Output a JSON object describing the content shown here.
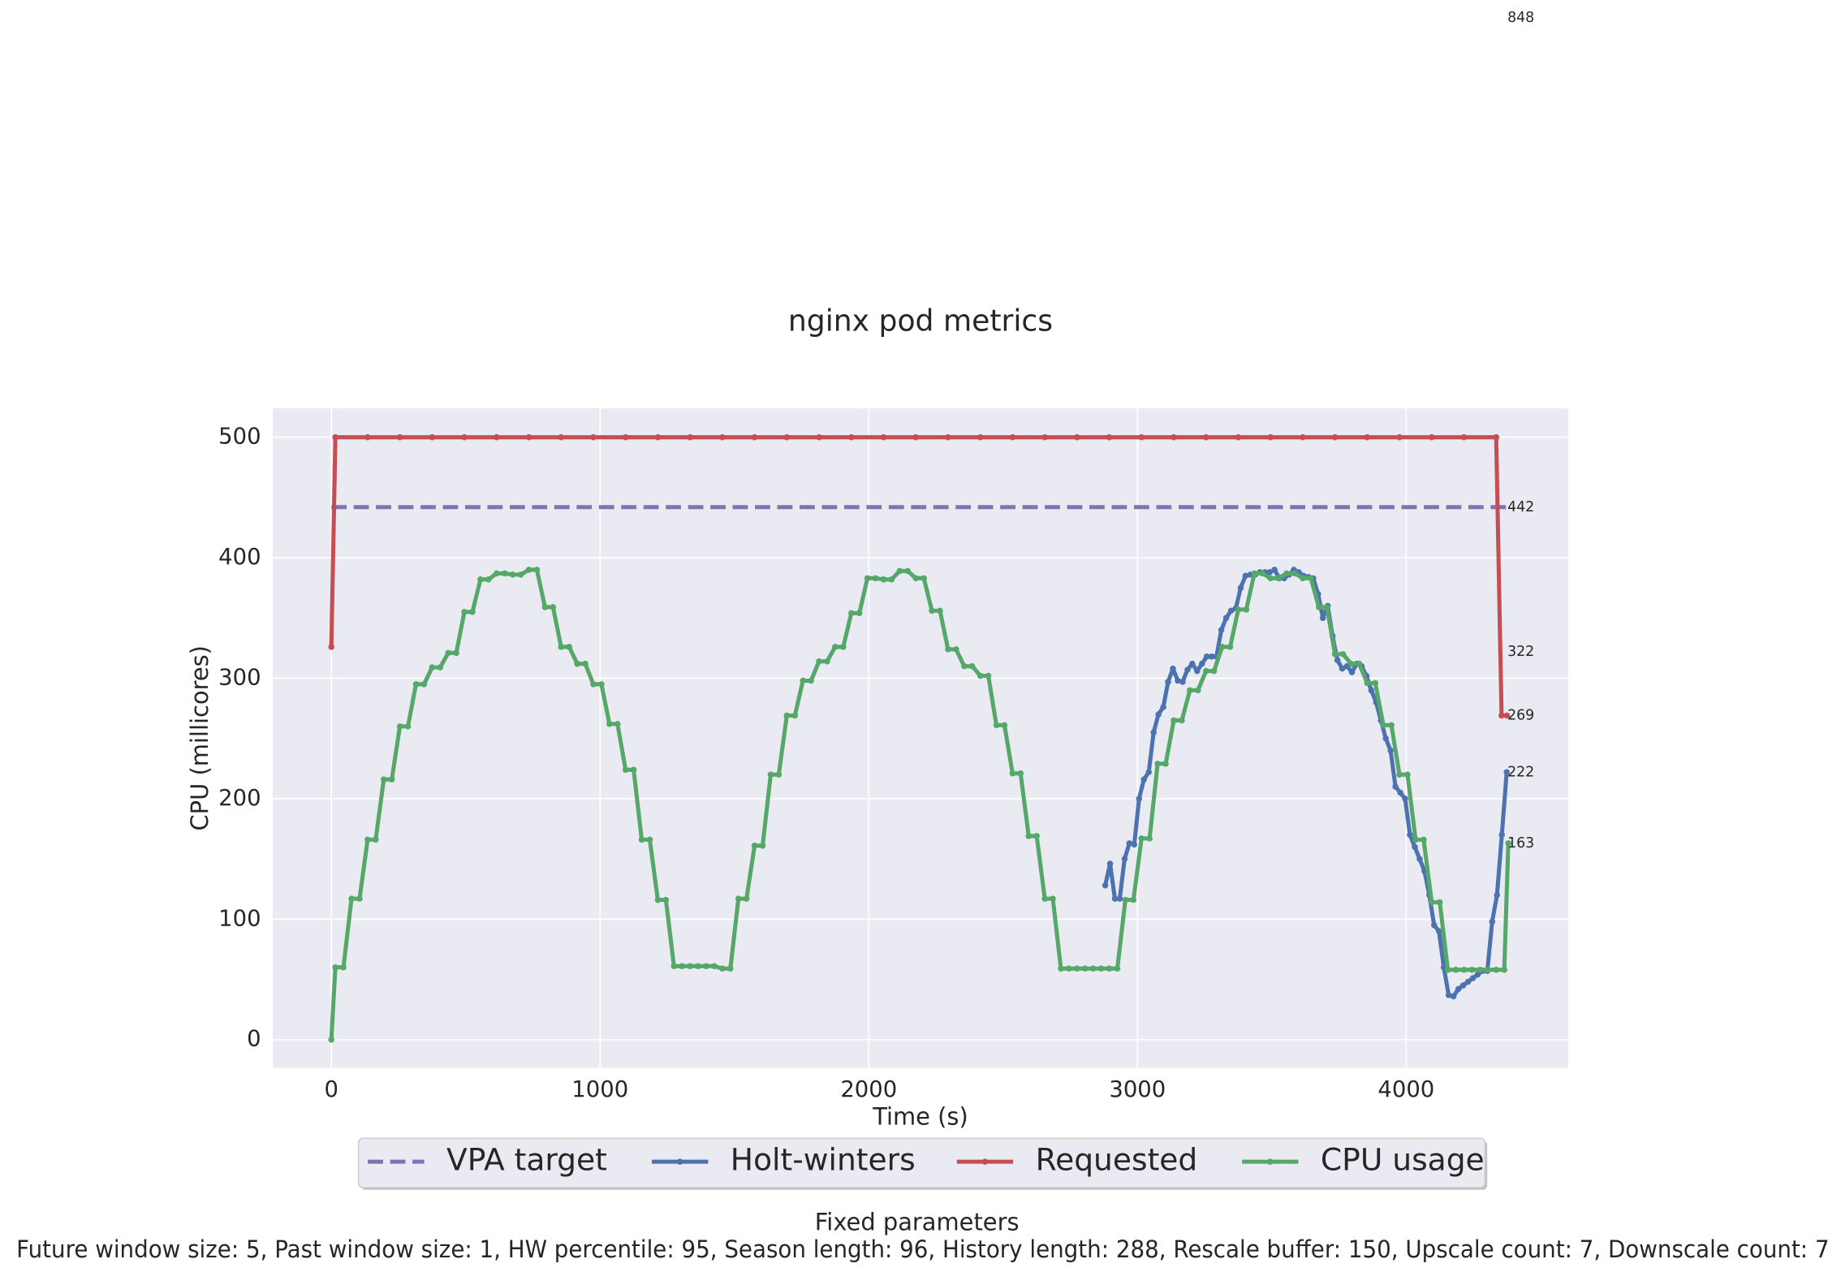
{
  "chart_data": {
    "type": "line",
    "title": "nginx pod metrics",
    "x_label": "Time (s)",
    "y_label": "CPU (millicores)",
    "xlim": [
      -218,
      4603
    ],
    "ylim": [
      -23.4,
      524
    ],
    "xticks": [
      0,
      1000,
      2000,
      3000,
      4000
    ],
    "yticks": [
      0,
      100,
      200,
      300,
      400,
      500
    ],
    "grid": true,
    "legend": "bottom",
    "series": [
      {
        "name": "VPA target",
        "color": "#8172b2",
        "dashed": true,
        "markers": false,
        "x": [
          0,
          4380
        ],
        "values": [
          442,
          442
        ]
      },
      {
        "name": "Holt-winters",
        "color": "#4c72b0",
        "dashed": false,
        "markers": true,
        "x": [
          2880,
          2898,
          2916,
          2934,
          2952,
          2970,
          2988,
          3006,
          3024,
          3042,
          3060,
          3078,
          3096,
          3114,
          3132,
          3150,
          3168,
          3186,
          3204,
          3222,
          3240,
          3258,
          3276,
          3294,
          3312,
          3330,
          3348,
          3366,
          3384,
          3402,
          3420,
          3438,
          3456,
          3474,
          3492,
          3510,
          3528,
          3546,
          3564,
          3582,
          3600,
          3618,
          3636,
          3654,
          3672,
          3690,
          3708,
          3726,
          3744,
          3762,
          3780,
          3798,
          3816,
          3834,
          3852,
          3870,
          3888,
          3906,
          3924,
          3942,
          3960,
          3978,
          3996,
          4014,
          4032,
          4050,
          4068,
          4086,
          4104,
          4122,
          4140,
          4158,
          4176,
          4194,
          4212,
          4230,
          4248,
          4266,
          4284,
          4302,
          4320,
          4338,
          4356,
          4374
        ],
        "values": [
          128,
          146,
          117,
          117,
          150,
          163,
          162,
          200,
          216,
          222,
          255,
          270,
          276,
          297,
          308,
          298,
          297,
          307,
          312,
          306,
          312,
          318,
          318,
          318,
          340,
          350,
          356,
          358,
          375,
          385,
          386,
          386,
          388,
          388,
          388,
          390,
          383,
          383,
          386,
          390,
          388,
          385,
          384,
          383,
          370,
          350,
          360,
          335,
          315,
          308,
          310,
          305,
          312,
          310,
          302,
          290,
          280,
          265,
          250,
          240,
          210,
          205,
          200,
          170,
          160,
          150,
          140,
          120,
          95,
          90,
          60,
          37,
          36,
          42,
          45,
          48,
          51,
          54,
          57,
          57,
          98,
          120,
          170,
          222
        ]
      },
      {
        "name": "Requested",
        "color": "#c44e52",
        "dashed": false,
        "markers": true,
        "x": [
          0,
          15,
          135,
          255,
          375,
          495,
          615,
          735,
          855,
          975,
          1095,
          1215,
          1335,
          1455,
          1575,
          1695,
          1815,
          1935,
          2055,
          2175,
          2295,
          2415,
          2535,
          2655,
          2775,
          2895,
          3015,
          3135,
          3255,
          3375,
          3495,
          3615,
          3735,
          3855,
          3975,
          4095,
          4215,
          4335,
          4355,
          4375
        ],
        "values": [
          326,
          500,
          500,
          500,
          500,
          500,
          500,
          500,
          500,
          500,
          500,
          500,
          500,
          500,
          500,
          500,
          500,
          500,
          500,
          500,
          500,
          500,
          500,
          500,
          500,
          500,
          500,
          500,
          500,
          500,
          500,
          500,
          500,
          500,
          500,
          500,
          500,
          500,
          269,
          269
        ]
      },
      {
        "name": "CPU usage",
        "color": "#55a868",
        "dashed": false,
        "markers": true,
        "x": [
          0,
          15,
          45,
          75,
          105,
          135,
          165,
          195,
          225,
          255,
          285,
          315,
          345,
          375,
          405,
          435,
          465,
          495,
          525,
          555,
          585,
          615,
          645,
          675,
          705,
          735,
          765,
          795,
          825,
          855,
          885,
          915,
          945,
          975,
          1005,
          1035,
          1065,
          1095,
          1125,
          1155,
          1185,
          1215,
          1245,
          1275,
          1305,
          1335,
          1365,
          1395,
          1425,
          1455,
          1485,
          1515,
          1545,
          1575,
          1605,
          1635,
          1665,
          1695,
          1725,
          1755,
          1785,
          1815,
          1845,
          1875,
          1905,
          1935,
          1965,
          1995,
          2025,
          2055,
          2085,
          2115,
          2145,
          2175,
          2205,
          2235,
          2265,
          2295,
          2325,
          2355,
          2385,
          2415,
          2445,
          2475,
          2505,
          2535,
          2565,
          2595,
          2625,
          2655,
          2685,
          2715,
          2745,
          2775,
          2805,
          2835,
          2865,
          2895,
          2925,
          2955,
          2985,
          3015,
          3045,
          3075,
          3105,
          3135,
          3165,
          3195,
          3225,
          3255,
          3285,
          3315,
          3345,
          3375,
          3405,
          3435,
          3465,
          3495,
          3525,
          3555,
          3585,
          3615,
          3645,
          3675,
          3705,
          3735,
          3765,
          3795,
          3825,
          3855,
          3885,
          3915,
          3945,
          3975,
          4005,
          4035,
          4065,
          4095,
          4125,
          4155,
          4185,
          4215,
          4245,
          4275,
          4305,
          4335,
          4365,
          4380
        ],
        "values": [
          0,
          60,
          60,
          117,
          117,
          166,
          166,
          216,
          216,
          260,
          260,
          295,
          295,
          309,
          309,
          321,
          321,
          355,
          355,
          382,
          382,
          387,
          387,
          386,
          386,
          390,
          390,
          359,
          359,
          326,
          326,
          312,
          312,
          295,
          295,
          262,
          262,
          224,
          224,
          166,
          166,
          116,
          116,
          61,
          61,
          61,
          61,
          61,
          61,
          59,
          59,
          117,
          117,
          161,
          161,
          220,
          220,
          269,
          269,
          298,
          298,
          314,
          314,
          326,
          326,
          354,
          354,
          383,
          383,
          382,
          382,
          389,
          389,
          383,
          383,
          356,
          356,
          324,
          324,
          310,
          310,
          302,
          302,
          261,
          261,
          221,
          221,
          169,
          169,
          117,
          117,
          59,
          59,
          59,
          59,
          59,
          59,
          59,
          59,
          116,
          116,
          167,
          167,
          229,
          229,
          265,
          265,
          290,
          290,
          306,
          306,
          326,
          326,
          357,
          357,
          387,
          387,
          383,
          383,
          387,
          387,
          383,
          383,
          359,
          359,
          320,
          320,
          312,
          312,
          296,
          296,
          261,
          261,
          220,
          220,
          166,
          166,
          114,
          114,
          58,
          58,
          58,
          58,
          58,
          58,
          58,
          58,
          163
        ]
      }
    ],
    "annotations": [
      {
        "x": 4390,
        "value": 848
      },
      {
        "x": 4390,
        "value": 442
      },
      {
        "x": 4390,
        "value": 322
      },
      {
        "x": 4390,
        "value": 269
      },
      {
        "x": 4390,
        "value": 222
      },
      {
        "x": 4390,
        "value": 163
      }
    ],
    "footer_title": "Fixed parameters",
    "footer": "Future window size: 5, Past window size: 1, HW percentile: 95, Season length: 96, History length: 288, Rescale buffer: 150, Upscale count: 7, Downscale count: 7"
  }
}
